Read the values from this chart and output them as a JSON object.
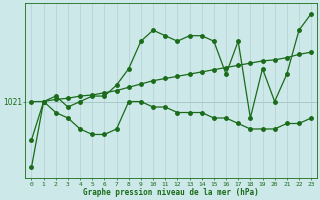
{
  "xlabel_label": "Graphe pression niveau de la mer (hPa)",
  "x_ticks": [
    0,
    1,
    2,
    3,
    4,
    5,
    6,
    7,
    8,
    9,
    10,
    11,
    12,
    13,
    14,
    15,
    16,
    17,
    18,
    19,
    20,
    21,
    22,
    23
  ],
  "ytick_value": 1021,
  "background_color": "#cce8e8",
  "line_color": "#1a6b1a",
  "vgrid_color": "#b8d4d4",
  "hgrid_color": "#a8c8c8",
  "ymin": 1014.0,
  "ymax": 1030.0,
  "curve_upper_x": [
    0,
    1,
    2,
    3,
    4,
    5,
    6,
    7,
    8,
    9,
    10,
    11,
    12,
    13,
    14,
    15,
    16,
    17,
    18,
    19,
    20,
    21,
    22,
    23
  ],
  "curve_upper_y": [
    1017.5,
    1021.0,
    1021.5,
    1020.5,
    1021.0,
    1021.5,
    1021.5,
    1022.5,
    1024.0,
    1026.5,
    1027.5,
    1027.0,
    1026.5,
    1027.0,
    1027.0,
    1026.5,
    1023.5,
    1026.5,
    1019.5,
    1024.0,
    1021.0,
    1023.5,
    1027.5,
    1029.0
  ],
  "curve_mid_x": [
    0,
    1,
    2,
    3,
    4,
    5,
    6,
    7,
    8,
    9,
    10,
    11,
    12,
    13,
    14,
    15,
    16,
    17,
    18,
    19,
    20,
    21,
    22,
    23
  ],
  "curve_mid_y": [
    1021.0,
    1021.0,
    1021.2,
    1021.3,
    1021.5,
    1021.6,
    1021.8,
    1022.0,
    1022.3,
    1022.6,
    1022.9,
    1023.1,
    1023.3,
    1023.5,
    1023.7,
    1023.9,
    1024.1,
    1024.3,
    1024.5,
    1024.7,
    1024.8,
    1025.0,
    1025.3,
    1025.5
  ],
  "curve_lower_x": [
    0,
    1,
    2,
    3,
    4,
    5,
    6,
    7,
    8,
    9,
    10,
    11,
    12,
    13,
    14,
    15,
    16,
    17,
    18,
    19,
    20,
    21,
    22,
    23
  ],
  "curve_lower_y": [
    1015.0,
    1021.0,
    1020.0,
    1019.5,
    1018.5,
    1018.0,
    1018.0,
    1018.5,
    1021.0,
    1021.0,
    1020.5,
    1020.5,
    1020.0,
    1020.0,
    1020.0,
    1019.5,
    1019.5,
    1019.0,
    1018.5,
    1018.5,
    1018.5,
    1019.0,
    1019.0,
    1019.5
  ],
  "curve_trend_x": [
    0,
    23
  ],
  "curve_trend_y": [
    1021.0,
    1025.5
  ]
}
